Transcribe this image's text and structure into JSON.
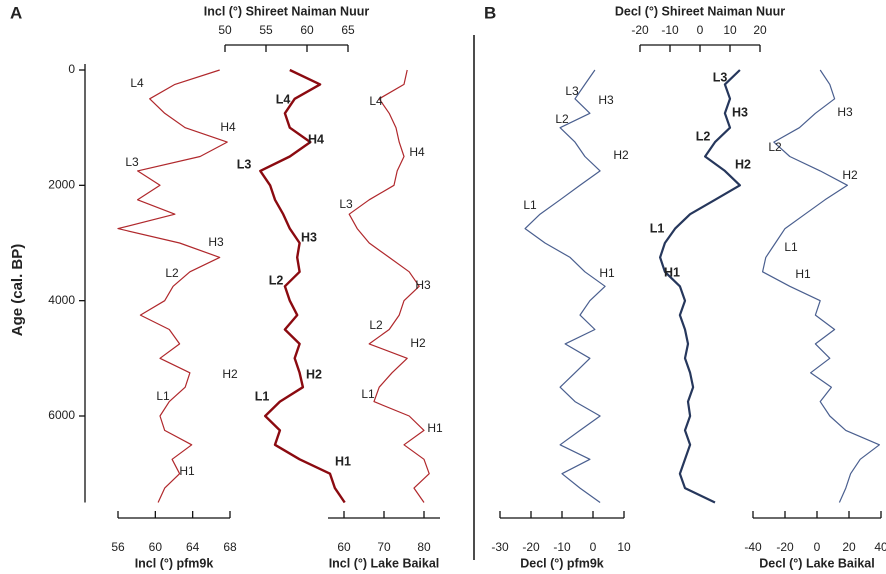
{
  "chart_data": {
    "type": "line",
    "ylabel": "Age (cal. BP)",
    "ylim": [
      0,
      7500
    ],
    "yticks": [
      0,
      2000,
      4000,
      6000
    ],
    "panels": [
      "A",
      "B"
    ],
    "ages": [
      0,
      250,
      500,
      750,
      1000,
      1250,
      1500,
      1750,
      2000,
      2250,
      2500,
      2750,
      3000,
      3250,
      3500,
      3750,
      4000,
      4250,
      4500,
      4750,
      5000,
      5250,
      5500,
      5750,
      6000,
      6250,
      6500,
      6750,
      7000,
      7250,
      7500
    ],
    "tracks": [
      {
        "xlabel": "Incl (°) pfm9k",
        "axis": "bottom",
        "xlim": [
          56,
          68
        ],
        "xticks": [
          56,
          60,
          64,
          68
        ],
        "color": "#b0282c",
        "values": [
          66.9,
          62.1,
          59.4,
          61,
          63.2,
          67.7,
          64.8,
          58.1,
          60.5,
          58.1,
          62.1,
          56,
          62.6,
          66.9,
          63.7,
          61.9,
          61,
          58.4,
          61.5,
          62.6,
          60.5,
          63.7,
          63.2,
          61.5,
          60.5,
          61,
          63.9,
          61.8,
          62.6,
          61,
          60.3
        ],
        "annotations": [
          "L4",
          "H4",
          "L3",
          "H3",
          "L2",
          "H2",
          "L1",
          "H1"
        ]
      },
      {
        "xlabel": "Incl (°) Shireet Naiman Nuur",
        "axis": "top",
        "xlim": [
          50,
          65
        ],
        "xticks": [
          50,
          55,
          60,
          65
        ],
        "color": "#8b0a10",
        "values": [
          57.9,
          61.6,
          58.5,
          57.3,
          57.9,
          60.4,
          57.9,
          54.3,
          55.5,
          56.1,
          57.1,
          57.9,
          59.1,
          58.8,
          59.1,
          57.3,
          57.9,
          58.8,
          57.3,
          59.1,
          58.5,
          59.1,
          59.5,
          56.7,
          54.9,
          56.7,
          56.1,
          59.1,
          62.8,
          63.4,
          64.6
        ],
        "annotations": [
          "L4",
          "H4",
          "L3",
          "H3",
          "L2",
          "H2",
          "L1",
          "H1"
        ]
      },
      {
        "xlabel": "Incl (°) Lake Baikal",
        "axis": "bottom",
        "xlim": [
          56,
          84
        ],
        "xticks": [
          60,
          70,
          80
        ],
        "color": "#b0282c",
        "values": [
          75.8,
          75,
          68.8,
          71.3,
          73,
          73.8,
          75,
          73.3,
          72.5,
          66.3,
          61.3,
          63.3,
          66.3,
          71.3,
          76.3,
          78.8,
          75,
          73.8,
          71.3,
          66.3,
          75.8,
          72,
          68.8,
          67.5,
          76.3,
          80,
          75,
          80,
          81.3,
          77.5,
          80
        ],
        "annotations": [
          "L4",
          "H4",
          "L3",
          "H3",
          "L2",
          "H2",
          "L1",
          "H1"
        ]
      },
      {
        "xlabel": "Decl (°) pfm9k",
        "axis": "bottom",
        "xlim": [
          -30,
          10
        ],
        "xticks": [
          -30,
          -20,
          -10,
          0,
          10
        ],
        "color": "#4a5f8f",
        "values": [
          0.6,
          -2.6,
          -5.8,
          -1,
          -10.6,
          -5.8,
          -2.6,
          2.3,
          -4.2,
          -10.6,
          -17.1,
          -21.9,
          -15.5,
          -7.4,
          -2.6,
          3.9,
          -1,
          -4.2,
          0.6,
          -9,
          -1,
          -5.8,
          -10.6,
          -5.8,
          2.3,
          -4.2,
          -10.6,
          -1,
          -10,
          -4.2,
          2.3
        ],
        "annotations": [
          "L3",
          "H3",
          "L2",
          "H2",
          "L1",
          "H1"
        ]
      },
      {
        "xlabel": "Decl (°) Shireet Naiman Nuur",
        "axis": "top",
        "xlim": [
          -20,
          20
        ],
        "xticks": [
          -20,
          -10,
          0,
          10,
          20
        ],
        "color": "#26375c",
        "values": [
          13.3,
          8.3,
          10,
          8.3,
          10,
          5,
          1.7,
          8.3,
          13.3,
          5,
          -3.3,
          -8.3,
          -11.7,
          -13.3,
          -11.7,
          -6.7,
          -5,
          -6.7,
          -5,
          -4,
          -5,
          -3.3,
          -2.3,
          -4,
          -3.3,
          -5,
          -3.3,
          -5,
          -6.7,
          -5,
          5
        ],
        "annotations": [
          "L3",
          "H3",
          "L2",
          "H2",
          "L1",
          "H1"
        ]
      },
      {
        "xlabel": "Decl (°) Lake Baikal",
        "axis": "bottom",
        "xlim": [
          -40,
          40
        ],
        "xticks": [
          -40,
          -20,
          0,
          20,
          40
        ],
        "color": "#4a5f8f",
        "values": [
          2,
          8,
          11,
          -1,
          -11,
          -27,
          -17,
          2,
          19,
          5,
          -7.5,
          -20,
          -26,
          -32,
          -34,
          -17,
          2,
          -1,
          11,
          -1,
          8,
          -4,
          9,
          2,
          8,
          18,
          39,
          27,
          21,
          18,
          14
        ],
        "annotations": [
          "H3",
          "L2",
          "H2",
          "L1",
          "H1"
        ]
      }
    ]
  }
}
